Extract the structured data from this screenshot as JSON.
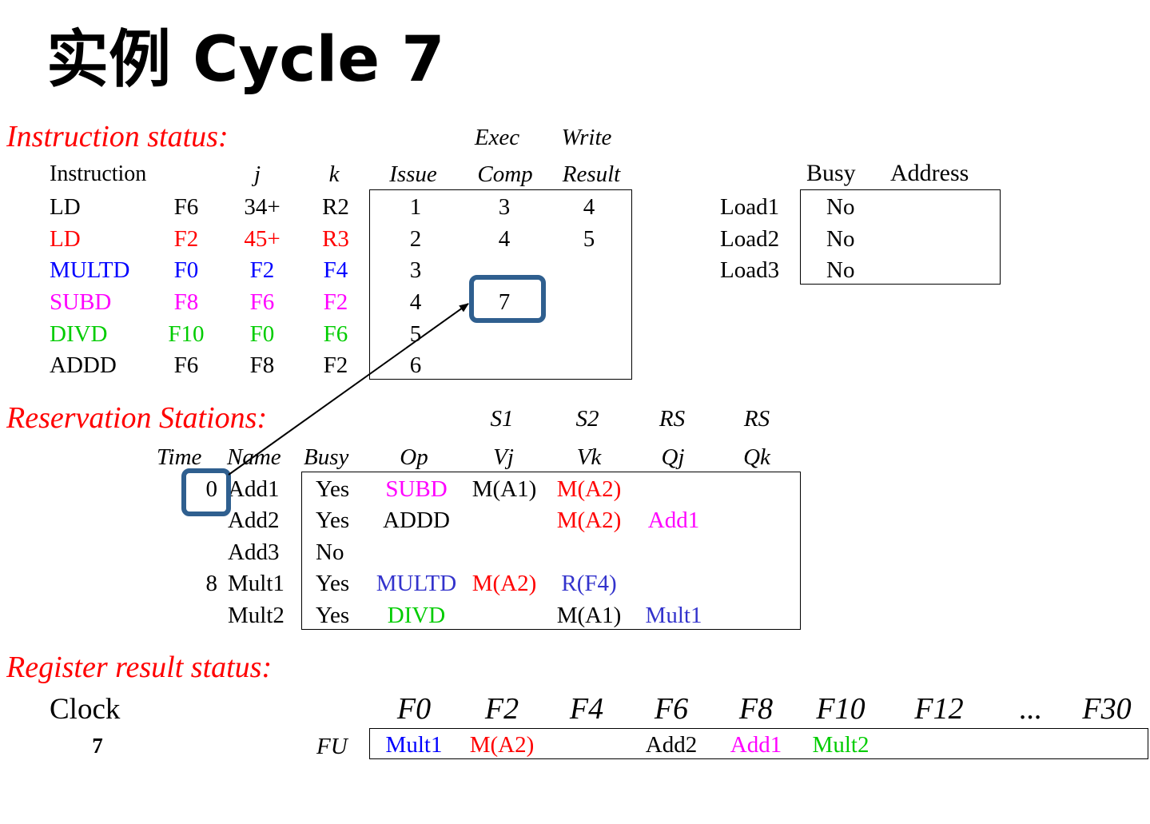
{
  "title": "实例 Cycle 7",
  "colors": {
    "red": "#ff0000",
    "blue": "#0000ff",
    "magenta": "#ff00ff",
    "green": "#00cc00",
    "slate": "#3333cc",
    "highlight": "#2f5f8f"
  },
  "instruction_status": {
    "heading": "Instruction status:",
    "col_exec_top": "Exec",
    "col_write_top": "Write",
    "col_instruction": "Instruction",
    "col_j": "j",
    "col_k": "k",
    "col_issue": "Issue",
    "col_comp": "Comp",
    "col_result": "Result",
    "rows": [
      {
        "op": "LD",
        "dest": "F6",
        "j": "34+",
        "k": "R2",
        "issue": "1",
        "exec": "3",
        "write": "4",
        "color": "#000000"
      },
      {
        "op": "LD",
        "dest": "F2",
        "j": "45+",
        "k": "R3",
        "issue": "2",
        "exec": "4",
        "write": "5",
        "color": "#ff0000"
      },
      {
        "op": "MULTD",
        "dest": "F0",
        "j": "F2",
        "k": "F4",
        "issue": "3",
        "exec": "",
        "write": "",
        "color": "#0000ff"
      },
      {
        "op": "SUBD",
        "dest": "F8",
        "j": "F6",
        "k": "F2",
        "issue": "4",
        "exec": "7",
        "write": "",
        "color": "#ff00ff"
      },
      {
        "op": "DIVD",
        "dest": "F10",
        "j": "F0",
        "k": "F6",
        "issue": "5",
        "exec": "",
        "write": "",
        "color": "#00cc00"
      },
      {
        "op": "ADDD",
        "dest": "F6",
        "j": "F8",
        "k": "F2",
        "issue": "6",
        "exec": "",
        "write": "",
        "color": "#000000"
      }
    ]
  },
  "load_buffers": {
    "col_busy": "Busy",
    "col_address": "Address",
    "rows": [
      {
        "name": "Load1",
        "busy": "No"
      },
      {
        "name": "Load2",
        "busy": "No"
      },
      {
        "name": "Load3",
        "busy": "No"
      }
    ]
  },
  "reservation_stations": {
    "heading": "Reservation Stations:",
    "top_s1": "S1",
    "top_s2": "S2",
    "top_rs1": "RS",
    "top_rs2": "RS",
    "col_time": "Time",
    "col_name": "Name",
    "col_busy": "Busy",
    "col_op": "Op",
    "col_vj": "Vj",
    "col_vk": "Vk",
    "col_qj": "Qj",
    "col_qk": "Qk",
    "rows": [
      {
        "time": "0",
        "name": "Add1",
        "busy": "Yes",
        "op": "SUBD",
        "op_color": "#ff00ff",
        "vj": "M(A1)",
        "vj_color": "#000000",
        "vk": "M(A2)",
        "vk_color": "#ff0000",
        "qj": "",
        "qj_color": "#000000",
        "qk": "",
        "qk_color": "#000000"
      },
      {
        "time": "",
        "name": "Add2",
        "busy": "Yes",
        "op": "ADDD",
        "op_color": "#000000",
        "vj": "",
        "vj_color": "#000000",
        "vk": "M(A2)",
        "vk_color": "#ff0000",
        "qj": "Add1",
        "qj_color": "#ff00ff",
        "qk": "",
        "qk_color": "#000000"
      },
      {
        "time": "",
        "name": "Add3",
        "busy": "No",
        "op": "",
        "op_color": "#000000",
        "vj": "",
        "vj_color": "#000000",
        "vk": "",
        "vk_color": "#000000",
        "qj": "",
        "qj_color": "#000000",
        "qk": "",
        "qk_color": "#000000"
      },
      {
        "time": "8",
        "name": "Mult1",
        "busy": "Yes",
        "op": "MULTD",
        "op_color": "#3333cc",
        "vj": "M(A2)",
        "vj_color": "#ff0000",
        "vk": "R(F4)",
        "vk_color": "#3333cc",
        "qj": "",
        "qj_color": "#000000",
        "qk": "",
        "qk_color": "#000000"
      },
      {
        "time": "",
        "name": "Mult2",
        "busy": "Yes",
        "op": "DIVD",
        "op_color": "#00cc00",
        "vj": "",
        "vj_color": "#000000",
        "vk": "M(A1)",
        "vk_color": "#000000",
        "qj": "Mult1",
        "qj_color": "#3333cc",
        "qk": "",
        "qk_color": "#000000"
      }
    ]
  },
  "register_status": {
    "heading": "Register result status:",
    "clock_label": "Clock",
    "clock_value": "7",
    "fu_label": "FU",
    "registers": [
      "F0",
      "F2",
      "F4",
      "F6",
      "F8",
      "F10",
      "F12",
      "...",
      "F30"
    ],
    "fu": [
      {
        "value": "Mult1",
        "color": "#0000ff"
      },
      {
        "value": "M(A2)",
        "color": "#ff0000"
      },
      {
        "value": "",
        "color": "#000000"
      },
      {
        "value": "Add2",
        "color": "#000000"
      },
      {
        "value": "Add1",
        "color": "#ff00ff"
      },
      {
        "value": "Mult2",
        "color": "#00cc00"
      },
      {
        "value": "",
        "color": "#000000"
      },
      {
        "value": "",
        "color": "#000000"
      },
      {
        "value": "",
        "color": "#000000"
      }
    ]
  }
}
